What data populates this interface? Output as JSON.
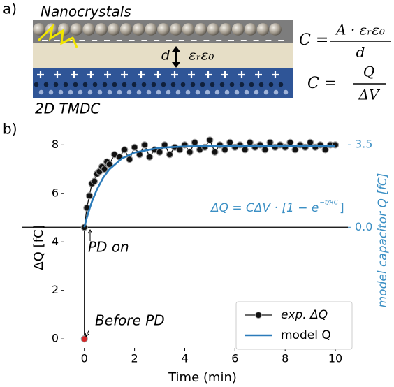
{
  "panel_a": {
    "label": "a)",
    "top_layer": "Nanocrystals",
    "bottom_layer": "2D TMDC",
    "gap_symbol": "d",
    "permittivity": "εᵣε₀",
    "equation_1": {
      "lhs": "C =",
      "numerator": "A · εᵣε₀",
      "denominator": "d"
    },
    "equation_2": {
      "lhs": "C =",
      "numerator": "Q",
      "denominator": "ΔV"
    }
  },
  "chart_data": {
    "type": "line",
    "panel_label": "b)",
    "x_label": "Time (min)",
    "y_label": "ΔQ [fC]",
    "y2_label": "model capacitor Q [fC]",
    "equation": {
      "main": "ΔQ  =  CΔV · [1 − e",
      "exponent": "−t/RC",
      "close": "]"
    },
    "annotations": [
      "PD on",
      "Before PD"
    ],
    "xlim": [
      -0.8,
      10.5
    ],
    "xticks": [
      0,
      2,
      4,
      6,
      8,
      10
    ],
    "ylim": [
      -0.37,
      8.5
    ],
    "yticks": [
      0,
      2,
      4,
      6,
      8
    ],
    "y2lim": [
      -5.12,
      4.01
    ],
    "y2ticks": [
      {
        "value": 0,
        "label": "0.0"
      },
      {
        "value": 3.5,
        "label": "3.5"
      }
    ],
    "y2_color": "#3b8fc4",
    "first_point_color": "#d62728",
    "legend": "lower right",
    "series": [
      {
        "name": "exp. ΔQ",
        "color": "#111111",
        "marker": true,
        "x": [
          0,
          0,
          0.1,
          0.2,
          0.3,
          0.4,
          0.5,
          0.6,
          0.7,
          0.8,
          0.9,
          1.0,
          1.2,
          1.4,
          1.6,
          1.8,
          2.0,
          2.2,
          2.4,
          2.6,
          2.8,
          3.0,
          3.2,
          3.4,
          3.6,
          3.8,
          4.0,
          4.2,
          4.4,
          4.6,
          4.8,
          5.0,
          5.2,
          5.4,
          5.6,
          5.8,
          6.0,
          6.2,
          6.4,
          6.6,
          6.8,
          7.0,
          7.2,
          7.4,
          7.6,
          7.8,
          8.0,
          8.2,
          8.4,
          8.6,
          8.8,
          9.0,
          9.2,
          9.4,
          9.6,
          9.8,
          10.0
        ],
        "values": [
          0,
          4.6,
          5.4,
          5.9,
          6.4,
          6.5,
          6.8,
          6.9,
          7.1,
          7.0,
          7.3,
          7.2,
          7.6,
          7.5,
          7.8,
          7.4,
          7.9,
          7.6,
          8.0,
          7.5,
          7.8,
          7.7,
          8.0,
          7.6,
          7.9,
          7.8,
          8.0,
          7.7,
          8.1,
          7.8,
          7.9,
          8.2,
          7.7,
          8.0,
          7.8,
          8.1,
          7.9,
          8.0,
          7.8,
          8.1,
          7.9,
          8.0,
          7.8,
          8.1,
          7.9,
          8.0,
          7.9,
          8.1,
          7.8,
          8.0,
          7.9,
          8.1,
          7.9,
          8.0,
          7.8,
          8.0,
          8.0
        ]
      },
      {
        "name": "model Q",
        "color": "#2b7bba",
        "marker": false,
        "axis": "y2",
        "x": [
          0,
          0.1,
          0.2,
          0.3,
          0.5,
          0.75,
          1,
          1.5,
          2,
          3,
          4,
          5,
          6,
          7,
          8,
          10
        ],
        "values": [
          0,
          0.41,
          0.76,
          1.08,
          1.6,
          2.1,
          2.46,
          2.92,
          3.17,
          3.37,
          3.43,
          3.44,
          3.45,
          3.45,
          3.45,
          3.45
        ]
      }
    ]
  }
}
